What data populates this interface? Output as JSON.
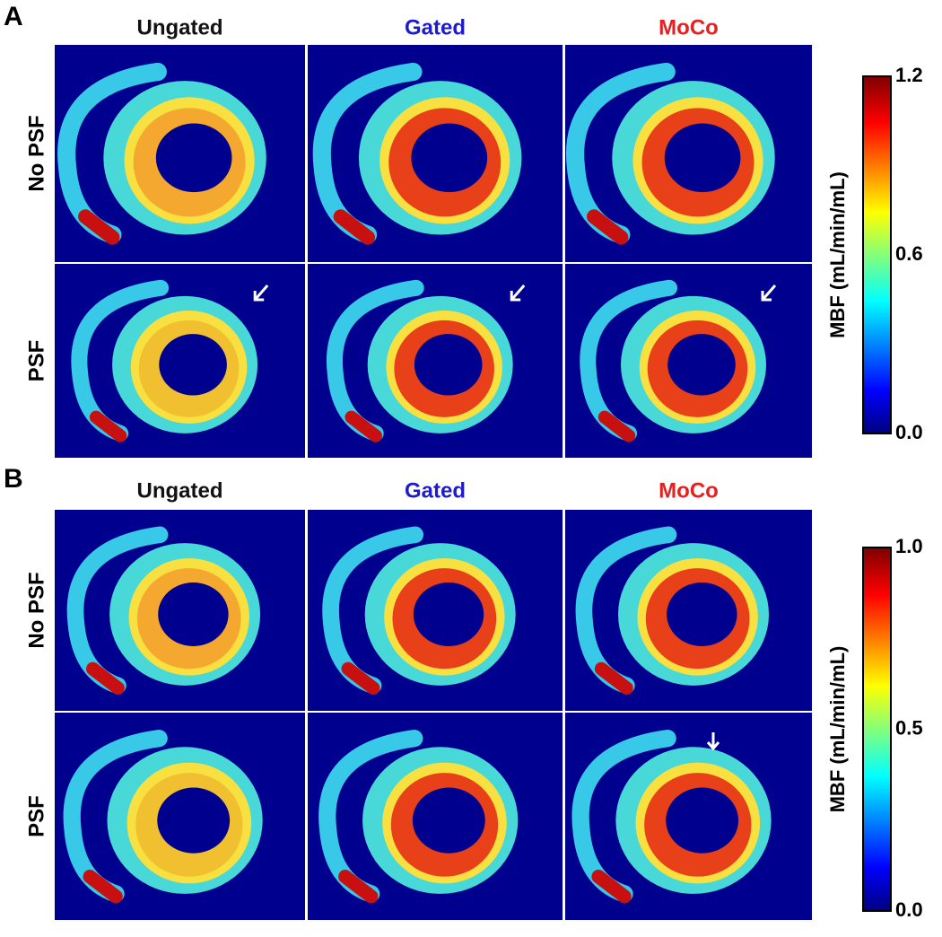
{
  "panels": [
    {
      "label": "A",
      "columns": [
        "Ungated",
        "Gated",
        "MoCo"
      ],
      "rows": [
        "No PSF",
        "PSF"
      ],
      "colorbar": {
        "label": "MBF (mL/min/mL)",
        "ticks": [
          "1.2",
          "0.6",
          "0.0"
        ]
      }
    },
    {
      "label": "B",
      "columns": [
        "Ungated",
        "Gated",
        "MoCo"
      ],
      "rows": [
        "No PSF",
        "PSF"
      ],
      "colorbar": {
        "label": "MBF (mL/min/mL)",
        "ticks": [
          "1.0",
          "0.5",
          "0.0"
        ]
      }
    }
  ]
}
